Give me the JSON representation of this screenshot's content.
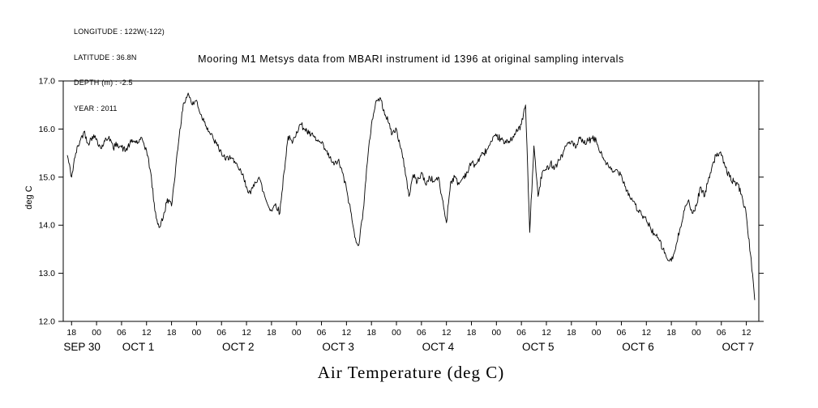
{
  "header": {
    "info_lines": [
      "LONGITUDE : 122W(-122)",
      "LATITUDE : 36.8N",
      "DEPTH (m) : -2.5",
      "YEAR : 2011"
    ],
    "title": "Mooring M1 Metsys data from MBARI instrument id 1396 at original sampling intervals"
  },
  "chart_data": {
    "type": "line",
    "title": "Mooring M1 Metsys data from MBARI instrument id 1396 at original sampling intervals",
    "xlabel": "Air Temperature (deg C)",
    "ylabel": "deg C",
    "ylim": [
      12.0,
      17.0
    ],
    "y_ticks": [
      12.0,
      13.0,
      14.0,
      15.0,
      16.0,
      17.0
    ],
    "y_tick_labels": [
      "12.0",
      "13.0",
      "14.0",
      "15.0",
      "16.0",
      "17.0"
    ],
    "x_domain_hours": [
      0,
      167
    ],
    "x_time_origin": "2011-09-30 16:00",
    "x_ticks_hours": [
      2,
      8,
      14,
      20,
      26,
      32,
      38,
      44,
      50,
      56,
      62,
      68,
      74,
      80,
      86,
      92,
      98,
      104,
      110,
      116,
      122,
      128,
      134,
      140,
      146,
      152,
      158,
      164
    ],
    "x_tick_labels": [
      "18",
      "00",
      "06",
      "12",
      "18",
      "00",
      "06",
      "12",
      "18",
      "00",
      "06",
      "12",
      "18",
      "00",
      "06",
      "12",
      "18",
      "00",
      "06",
      "12",
      "18",
      "00",
      "06",
      "12",
      "18",
      "00",
      "06",
      "12"
    ],
    "date_labels": [
      {
        "label": "SEP 30",
        "hour": 4.5
      },
      {
        "label": "OCT 1",
        "hour": 18
      },
      {
        "label": "OCT 2",
        "hour": 42
      },
      {
        "label": "OCT 3",
        "hour": 66
      },
      {
        "label": "OCT 4",
        "hour": 90
      },
      {
        "label": "OCT 5",
        "hour": 114
      },
      {
        "label": "OCT 6",
        "hour": 138
      },
      {
        "label": "OCT 7",
        "hour": 162
      }
    ],
    "line_color": "#000000",
    "noise_amplitude": 0.07,
    "series": [
      {
        "name": "air_temperature_degC",
        "x_start_hour": 1,
        "x_step_hours": 1,
        "values": [
          15.45,
          15.0,
          15.5,
          15.75,
          15.95,
          15.7,
          15.85,
          15.8,
          15.6,
          15.75,
          15.85,
          15.6,
          15.7,
          15.62,
          15.55,
          15.7,
          15.75,
          15.72,
          15.78,
          15.55,
          15.1,
          14.3,
          13.95,
          14.15,
          14.55,
          14.4,
          15.2,
          16.0,
          16.55,
          16.75,
          16.5,
          16.6,
          16.3,
          16.15,
          15.95,
          15.8,
          15.65,
          15.5,
          15.35,
          15.45,
          15.3,
          15.2,
          15.05,
          14.8,
          14.65,
          14.9,
          15.0,
          14.7,
          14.45,
          14.3,
          14.45,
          14.25,
          15.1,
          15.85,
          15.7,
          15.95,
          16.1,
          16.0,
          15.9,
          15.85,
          15.75,
          15.7,
          15.55,
          15.4,
          15.25,
          15.35,
          15.1,
          14.75,
          14.3,
          13.75,
          13.6,
          14.3,
          15.3,
          16.1,
          16.55,
          16.65,
          16.4,
          16.15,
          15.9,
          16.0,
          15.6,
          15.2,
          14.6,
          15.05,
          14.9,
          15.1,
          14.85,
          15.0,
          14.9,
          15.0,
          14.55,
          14.05,
          14.9,
          15.0,
          14.85,
          15.0,
          15.1,
          15.3,
          15.25,
          15.4,
          15.5,
          15.6,
          15.75,
          15.85,
          15.8,
          15.7,
          15.75,
          15.85,
          15.95,
          16.1,
          16.5,
          13.85,
          15.65,
          14.6,
          15.1,
          15.15,
          15.3,
          15.2,
          15.35,
          15.5,
          15.7,
          15.75,
          15.6,
          15.8,
          15.7,
          15.75,
          15.8,
          15.75,
          15.5,
          15.35,
          15.2,
          15.1,
          15.15,
          15.05,
          14.8,
          14.6,
          14.5,
          14.3,
          14.2,
          14.1,
          13.95,
          13.8,
          13.7,
          13.5,
          13.3,
          13.25,
          13.5,
          13.9,
          14.3,
          14.5,
          14.25,
          14.4,
          14.8,
          14.6,
          15.0,
          15.3,
          15.5,
          15.45,
          15.2,
          15.0,
          14.9,
          14.85,
          14.6,
          14.2,
          13.4,
          12.45
        ]
      }
    ]
  }
}
